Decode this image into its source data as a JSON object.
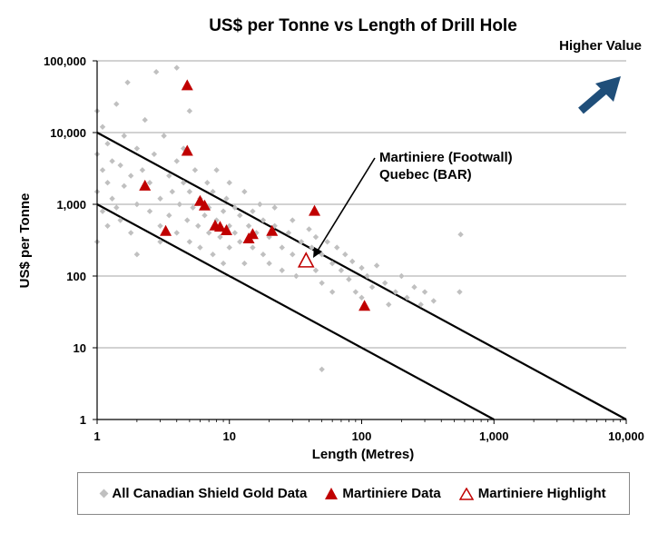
{
  "chart_data": {
    "type": "scatter",
    "title": "US$ per Tonne vs Length of Drill Hole",
    "xlabel": "Length (Metres)",
    "ylabel": "US$ per Tonne",
    "x_scale": "log",
    "y_scale": "log",
    "xlim": [
      1,
      10000
    ],
    "ylim": [
      1,
      100000
    ],
    "x_ticks": [
      "1",
      "10",
      "100",
      "1,000",
      "10,000"
    ],
    "y_ticks": [
      "1",
      "10",
      "100",
      "1,000",
      "10,000",
      "100,000"
    ],
    "grid": "horizontal",
    "legend_position": "bottom",
    "annotations": {
      "higher_value": "Higher Value",
      "callout_line1": "Martiniere  (Footwall)",
      "callout_line2": "Quebec (BAR)"
    },
    "reference_lines": [
      {
        "x": [
          1,
          10000
        ],
        "y": [
          10000,
          1
        ]
      },
      {
        "x": [
          1,
          1000
        ],
        "y": [
          1000,
          1
        ]
      }
    ],
    "series": [
      {
        "name": "All Canadian Shield Gold Data",
        "marker": "diamond",
        "color": "#c0c0c0",
        "points": [
          [
            1.0,
            300
          ],
          [
            1.0,
            1500
          ],
          [
            1.0,
            5000
          ],
          [
            1.0,
            20000
          ],
          [
            1.1,
            800
          ],
          [
            1.1,
            3000
          ],
          [
            1.1,
            12000
          ],
          [
            1.2,
            500
          ],
          [
            1.2,
            2000
          ],
          [
            1.2,
            7000
          ],
          [
            1.3,
            1200
          ],
          [
            1.3,
            4000
          ],
          [
            1.4,
            900
          ],
          [
            1.4,
            25000
          ],
          [
            1.5,
            3500
          ],
          [
            1.5,
            600
          ],
          [
            1.6,
            1800
          ],
          [
            1.6,
            9000
          ],
          [
            1.7,
            50000
          ],
          [
            1.8,
            2500
          ],
          [
            1.8,
            400
          ],
          [
            2.0,
            6000
          ],
          [
            2.0,
            1000
          ],
          [
            2.0,
            200
          ],
          [
            2.2,
            3000
          ],
          [
            2.3,
            15000
          ],
          [
            2.5,
            800
          ],
          [
            2.5,
            2000
          ],
          [
            2.7,
            5000
          ],
          [
            2.8,
            70000
          ],
          [
            3.0,
            1200
          ],
          [
            3.0,
            500
          ],
          [
            3.0,
            300
          ],
          [
            3.2,
            9000
          ],
          [
            3.5,
            2500
          ],
          [
            3.5,
            700
          ],
          [
            3.7,
            1500
          ],
          [
            4.0,
            80000
          ],
          [
            4.0,
            4000
          ],
          [
            4.0,
            400
          ],
          [
            4.2,
            1000
          ],
          [
            4.5,
            2000
          ],
          [
            4.5,
            6000
          ],
          [
            4.8,
            600
          ],
          [
            5.0,
            1500
          ],
          [
            5.0,
            300
          ],
          [
            5.0,
            20000
          ],
          [
            5.3,
            900
          ],
          [
            5.5,
            3000
          ],
          [
            5.8,
            500
          ],
          [
            6.0,
            1200
          ],
          [
            6.0,
            250
          ],
          [
            6.5,
            700
          ],
          [
            6.8,
            2000
          ],
          [
            7.0,
            400
          ],
          [
            7.0,
            900
          ],
          [
            7.5,
            1500
          ],
          [
            7.5,
            200
          ],
          [
            8.0,
            600
          ],
          [
            8.0,
            3000
          ],
          [
            8.5,
            350
          ],
          [
            9.0,
            800
          ],
          [
            9.0,
            150
          ],
          [
            9.5,
            1200
          ],
          [
            10,
            500
          ],
          [
            10,
            250
          ],
          [
            10,
            2000
          ],
          [
            11,
            400
          ],
          [
            11,
            900
          ],
          [
            12,
            300
          ],
          [
            12,
            700
          ],
          [
            13,
            150
          ],
          [
            13,
            1500
          ],
          [
            14,
            500
          ],
          [
            15,
            250
          ],
          [
            15,
            800
          ],
          [
            16,
            400
          ],
          [
            17,
            1000
          ],
          [
            18,
            200
          ],
          [
            18,
            600
          ],
          [
            20,
            350
          ],
          [
            20,
            150
          ],
          [
            22,
            500
          ],
          [
            22,
            900
          ],
          [
            25,
            250
          ],
          [
            25,
            120
          ],
          [
            28,
            400
          ],
          [
            30,
            200
          ],
          [
            30,
            600
          ],
          [
            32,
            100
          ],
          [
            35,
            300
          ],
          [
            38,
            150
          ],
          [
            40,
            450
          ],
          [
            42,
            250
          ],
          [
            45,
            120
          ],
          [
            45,
            350
          ],
          [
            50,
            200
          ],
          [
            50,
            80
          ],
          [
            55,
            300
          ],
          [
            60,
            150
          ],
          [
            60,
            60
          ],
          [
            65,
            250
          ],
          [
            70,
            120
          ],
          [
            75,
            200
          ],
          [
            80,
            90
          ],
          [
            85,
            160
          ],
          [
            90,
            60
          ],
          [
            100,
            130
          ],
          [
            100,
            50
          ],
          [
            110,
            100
          ],
          [
            120,
            70
          ],
          [
            130,
            140
          ],
          [
            150,
            80
          ],
          [
            160,
            40
          ],
          [
            180,
            60
          ],
          [
            200,
            100
          ],
          [
            220,
            50
          ],
          [
            250,
            70
          ],
          [
            280,
            40
          ],
          [
            300,
            60
          ],
          [
            350,
            45
          ],
          [
            550,
            60
          ],
          [
            560,
            380
          ],
          [
            50,
            5
          ]
        ]
      },
      {
        "name": "Martiniere Data",
        "marker": "triangle",
        "color": "#c00000",
        "points": [
          [
            2.3,
            1800
          ],
          [
            3.3,
            420
          ],
          [
            4.8,
            45000
          ],
          [
            4.8,
            5500
          ],
          [
            6.0,
            1100
          ],
          [
            6.5,
            950
          ],
          [
            7.8,
            500
          ],
          [
            8.5,
            480
          ],
          [
            9.5,
            430
          ],
          [
            14,
            330
          ],
          [
            15,
            380
          ],
          [
            21,
            420
          ],
          [
            44,
            800
          ],
          [
            105,
            38
          ]
        ]
      },
      {
        "name": "Martiniere Highlight",
        "marker": "triangle-open",
        "color": "#c00000",
        "points": [
          [
            38,
            160
          ]
        ]
      }
    ]
  }
}
